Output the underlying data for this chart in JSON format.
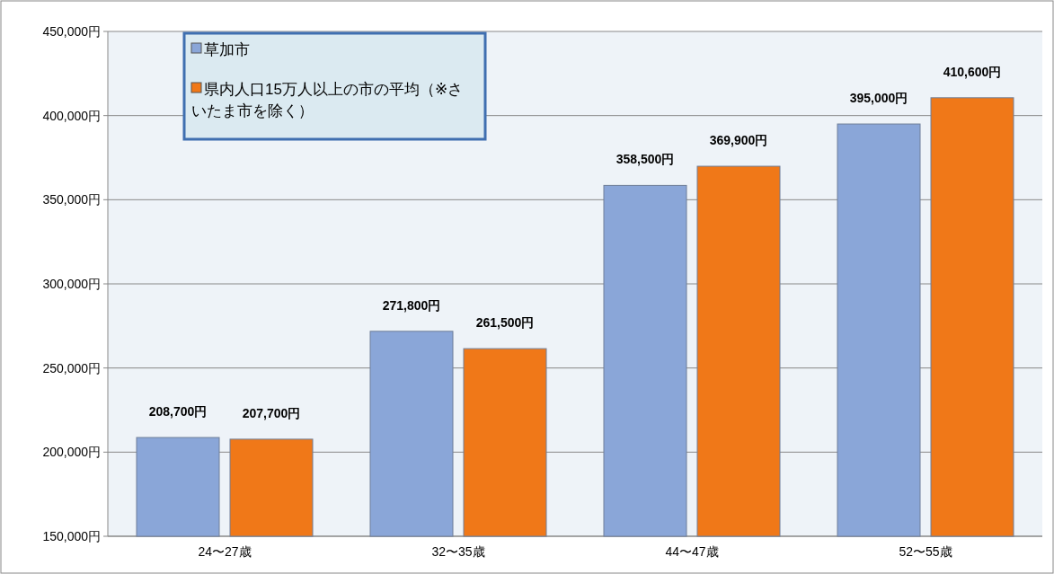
{
  "chart_data": {
    "type": "bar",
    "categories": [
      "24〜27歳",
      "32〜35歳",
      "44〜47歳",
      "52〜55歳"
    ],
    "series": [
      {
        "name": "草加市",
        "color": "#8aa6d8",
        "values": [
          208700,
          271800,
          358500,
          395000
        ],
        "value_labels": [
          "208,700円",
          "271,800円",
          "358,500円",
          "395,000円"
        ]
      },
      {
        "name": "県内人口15万人以上の市の平均（※さいたま市を除く）",
        "color": "#f07818",
        "values": [
          207700,
          261500,
          369900,
          410600
        ],
        "value_labels": [
          "207,700円",
          "261,500円",
          "369,900円",
          "410,600円"
        ]
      }
    ],
    "ylim": [
      150000,
      450000
    ],
    "yticks": [
      {
        "value": 150000,
        "label": "150,000円"
      },
      {
        "value": 200000,
        "label": "200,000円"
      },
      {
        "value": 250000,
        "label": "250,000円"
      },
      {
        "value": 300000,
        "label": "300,000円"
      },
      {
        "value": 350000,
        "label": "350,000円"
      },
      {
        "value": 400000,
        "label": "400,000円"
      },
      {
        "value": 450000,
        "label": "450,000円"
      }
    ],
    "grid": "y",
    "legend": "top left"
  }
}
